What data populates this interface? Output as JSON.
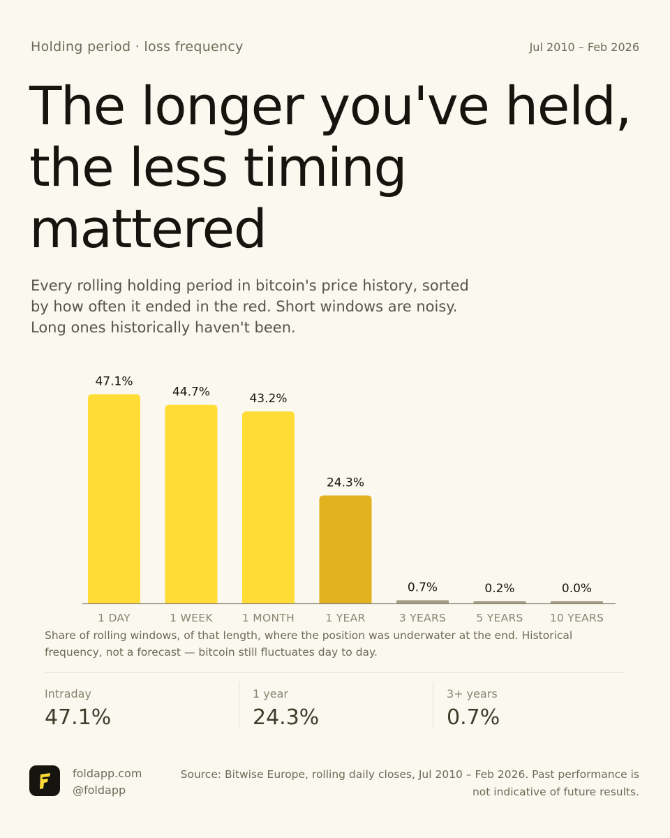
{
  "header": {
    "kicker": "Holding period · loss frequency",
    "date_range": "Jul 2010 – Feb 2026"
  },
  "headline": "The longer you've held, the less timing mattered",
  "subtitle": "Every rolling holding period in bitcoin's price history, sorted by how often it ended in the red. Short windows are noisy. Long ones historically haven't been.",
  "colors": {
    "bar": "#FFDC36",
    "bar_highlight": "#E2B21F",
    "bar_low": "#A59D86",
    "axis": "#8C8775",
    "text_dark": "#15140E",
    "text_muted": "#6E6A58"
  },
  "chart_data": {
    "type": "bar",
    "categories": [
      "1 DAY",
      "1 WEEK",
      "1 MONTH",
      "1 YEAR",
      "3 YEARS",
      "5 YEARS",
      "10 YEARS"
    ],
    "values": [
      47.1,
      44.7,
      43.2,
      24.3,
      0.7,
      0.2,
      0.0
    ],
    "value_labels": [
      "47.1%",
      "44.7%",
      "43.2%",
      "24.3%",
      "0.7%",
      "0.2%",
      "0.0%"
    ],
    "highlight_category": "1 YEAR",
    "ylim": [
      0,
      50
    ],
    "grid": false,
    "xlabel": "",
    "ylabel": ""
  },
  "caption": "Share of rolling windows, of that length, where the position was underwater at the end. Historical frequency, not a forecast — bitcoin still fluctuates day to day.",
  "stats": [
    {
      "label": "Intraday",
      "value": "47.1%"
    },
    {
      "label": "1 year",
      "value": "24.3%"
    },
    {
      "label": "3+ years",
      "value": "0.7%"
    }
  ],
  "footer": {
    "logo_icon": "fold-logo-icon",
    "site": "foldapp.com",
    "handle": "@foldapp",
    "source": "Source: Bitwise Europe, rolling daily closes, Jul 2010 – Feb 2026. Past performance is not indicative of future results."
  }
}
